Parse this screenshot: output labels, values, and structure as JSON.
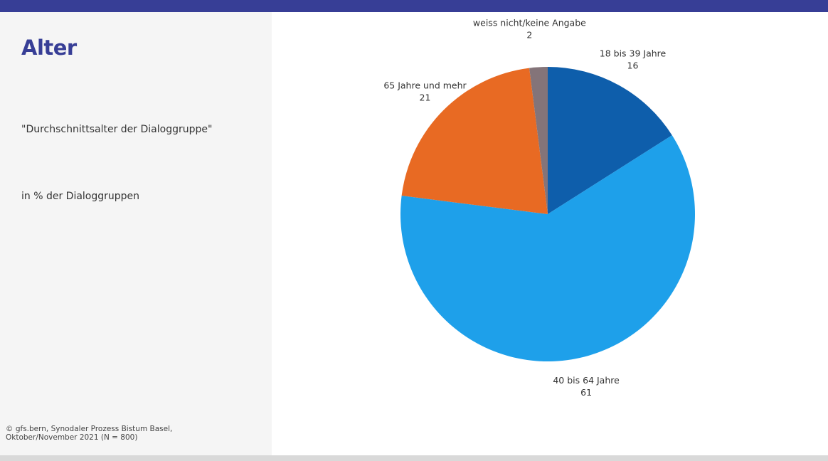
{
  "page": {
    "title": "Alter",
    "subtitle": "\"Durchschnittsalter der Dialoggruppe\"",
    "unit": "in % der Dialoggruppen",
    "source_line1": "©  gfs.bern, Synodaler Prozess Bistum Basel,",
    "source_line2": "Oktober/November 2021 (N = 800)"
  },
  "colors": {
    "brand": "#373e96",
    "panel": "#f5f5f5"
  },
  "chart_data": {
    "type": "pie",
    "title": "Alter",
    "start_angle_deg": 0,
    "direction": "clockwise",
    "slices": [
      {
        "label": "18 bis 39 Jahre",
        "value": 16,
        "color": "#0e5eab"
      },
      {
        "label": "40 bis 64 Jahre",
        "value": 61,
        "color": "#1ea0ea"
      },
      {
        "label": "65 Jahre und mehr",
        "value": 21,
        "color": "#e86a23"
      },
      {
        "label": "weiss nicht/keine Angabe",
        "value": 2,
        "color": "#847479"
      }
    ]
  }
}
